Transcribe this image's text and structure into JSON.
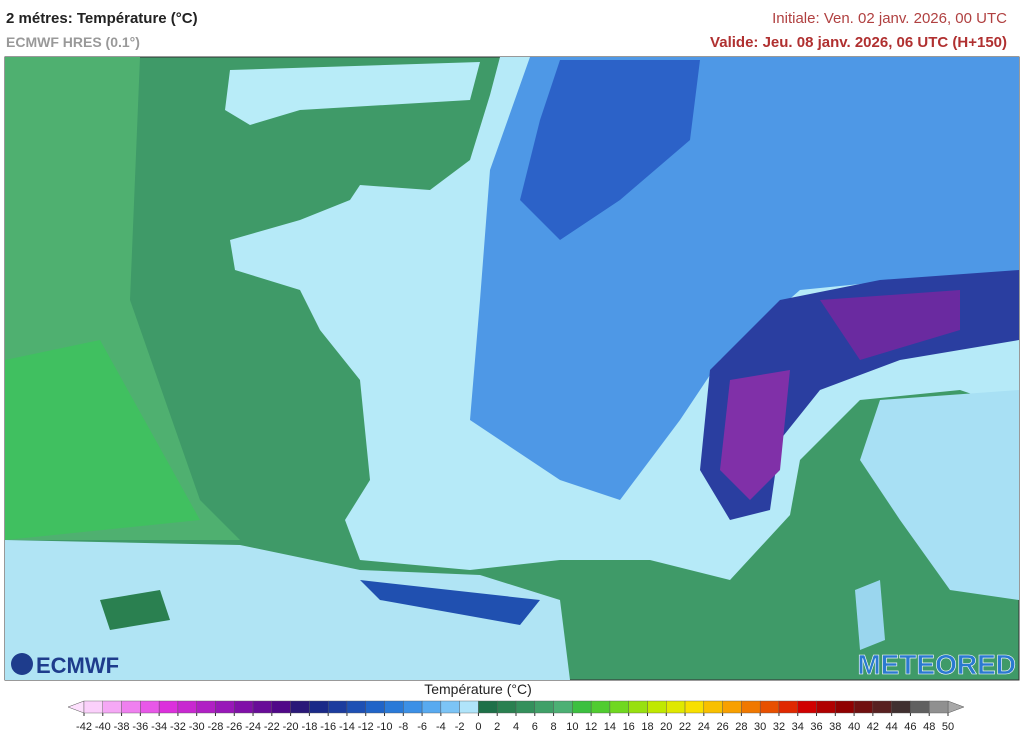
{
  "header": {
    "title": "2 métres: Température (°C)",
    "subtitle": "ECMWF HRES (0.1°)",
    "initial": "Initiale: Ven. 02 janv. 2026, 00 UTC",
    "valid": "Valide: Jeu. 08 janv. 2026, 06 UTC (H+150)"
  },
  "logos": {
    "left": "ECMWF",
    "right": "METEORED"
  },
  "colorbar": {
    "label": "Température (°C)",
    "ticks": [
      -42,
      -40,
      -38,
      -36,
      -34,
      -32,
      -30,
      -28,
      -26,
      -24,
      -22,
      -20,
      -18,
      -16,
      -14,
      -12,
      -10,
      -8,
      -6,
      -4,
      -2,
      0,
      2,
      4,
      6,
      8,
      10,
      12,
      14,
      16,
      18,
      20,
      22,
      24,
      26,
      28,
      30,
      32,
      34,
      36,
      38,
      40,
      42,
      44,
      46,
      48,
      50
    ],
    "colors": [
      "#fbd0fb",
      "#f5a8f5",
      "#ef80ef",
      "#e858e8",
      "#dc30dc",
      "#c828d0",
      "#b020c4",
      "#9818b8",
      "#8010a8",
      "#680c98",
      "#500888",
      "#2a1878",
      "#1a2a88",
      "#1c3c9e",
      "#1e50b4",
      "#2064c8",
      "#2a7ad8",
      "#3c90e6",
      "#58aaf0",
      "#7cc4f6",
      "#b0e4fa",
      "#1e7048",
      "#2a8050",
      "#34905c",
      "#40a068",
      "#4cb074",
      "#3cc040",
      "#50cc30",
      "#70d820",
      "#98e010",
      "#c0e800",
      "#e0e800",
      "#f8e000",
      "#f8c000",
      "#f8a000",
      "#f07800",
      "#e85000",
      "#e02800",
      "#d00000",
      "#b00000",
      "#900000",
      "#701010",
      "#582020",
      "#403030",
      "#606060",
      "#909090"
    ],
    "under_color": "#fde0fd",
    "over_color": "#a8a8a8"
  }
}
